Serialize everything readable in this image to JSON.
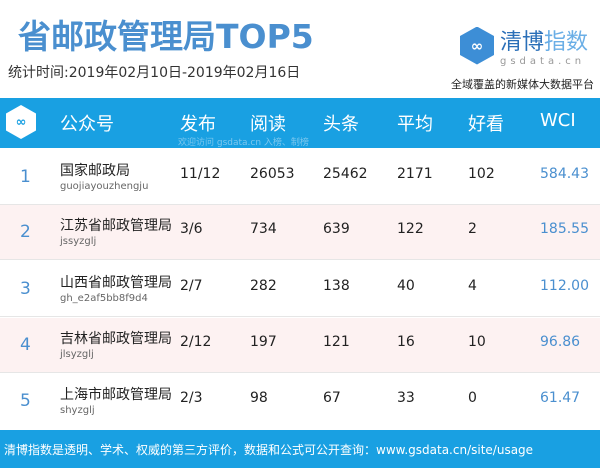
{
  "title": "省邮政管理局TOP5",
  "period": "统计时间:2019年02月10日-2019年02月16日",
  "brand": {
    "name_dark": "清博",
    "name_light": "指数",
    "domain": "gsdata.cn",
    "slogan": "全域覆盖的新媒体大数据平台",
    "icon": "infinity-hex-icon"
  },
  "header": {
    "account": "公众号",
    "publish": "发布",
    "read": "阅读",
    "headline": "头条",
    "avg": "平均",
    "likes": "好看",
    "wci": "WCI",
    "watermark": "欢迎访问 gsdata.cn 入榜、制榜"
  },
  "rows": [
    {
      "rank": "1",
      "name": "国家邮政局",
      "id": "guojiayouzhengju",
      "publish": "11/12",
      "read": "26053",
      "headline": "25462",
      "avg": "2171",
      "likes": "102",
      "wci": "584.43"
    },
    {
      "rank": "2",
      "name": "江苏省邮政管理局",
      "id": "jssyzglj",
      "publish": "3/6",
      "read": "734",
      "headline": "639",
      "avg": "122",
      "likes": "2",
      "wci": "185.55"
    },
    {
      "rank": "3",
      "name": "山西省邮政管理局",
      "id": "gh_e2af5bb8f9d4",
      "publish": "2/7",
      "read": "282",
      "headline": "138",
      "avg": "40",
      "likes": "4",
      "wci": "112.00"
    },
    {
      "rank": "4",
      "name": "吉林省邮政管理局",
      "id": "jlsyzglj",
      "publish": "2/12",
      "read": "197",
      "headline": "121",
      "avg": "16",
      "likes": "10",
      "wci": "96.86"
    },
    {
      "rank": "5",
      "name": "上海市邮政管理局",
      "id": "shyzglj",
      "publish": "2/3",
      "read": "98",
      "headline": "67",
      "avg": "33",
      "likes": "0",
      "wci": "61.47"
    }
  ],
  "footer": "清博指数是透明、学术、权威的第三方评价，数据和公式可公开查询：www.gsdata.cn/site/usage",
  "colors": {
    "accent": "#19a0e2",
    "title": "#4a8fcf",
    "alt_row": "#fdf2f2"
  }
}
